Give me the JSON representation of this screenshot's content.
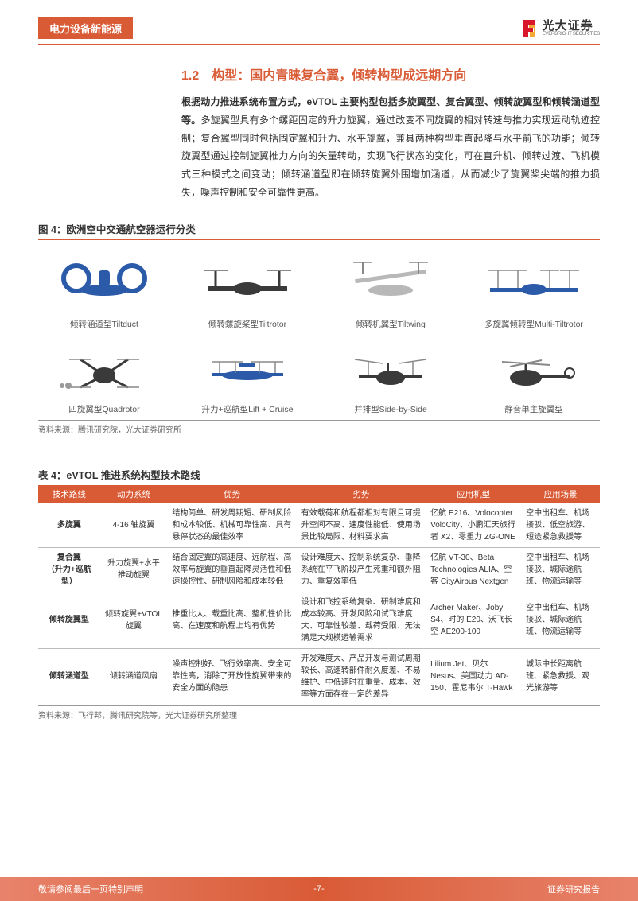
{
  "header": {
    "category": "电力设备新能源",
    "brand_cn": "光大证券",
    "brand_en": "EVERBRIGHT SECURITIES",
    "accent_color": "#d95b36"
  },
  "section": {
    "number": "1.2",
    "title": "构型：国内青睐复合翼，倾转构型成远期方向",
    "para_bold": "根据动力推进系统布置方式，eVTOL 主要构型包括多旋翼型、复合翼型、倾转旋翼型和倾转涵道型等。",
    "para_rest": "多旋翼型具有多个螺距固定的升力旋翼，通过改变不同旋翼的相对转速与推力实现运动轨迹控制；复合翼型同时包括固定翼和升力、水平旋翼，兼具两种构型垂直起降与水平前飞的功能；倾转旋翼型通过控制旋翼推力方向的矢量转动，实现飞行状态的变化，可在直升机、倾转过渡、飞机模式三种模式之间变动；倾转涵道型即在倾转旋翼外围增加涵道，从而减少了旋翼桨尖端的推力损失，噪声控制和安全可靠性更高。"
  },
  "figure4": {
    "caption": "图 4：欧洲空中交通航空器运行分类",
    "source": "资料来源：腾讯研究院，光大证券研究所",
    "row1": [
      {
        "label": "倾转涵道型Tiltduct",
        "color": "#2b5aa8"
      },
      {
        "label": "倾转螺旋桨型Tiltrotor",
        "color": "#3a3a3a"
      },
      {
        "label": "倾转机翼型Tiltwing",
        "color": "#b8b8b8"
      },
      {
        "label": "多旋翼倾转型Multi-Tiltrotor",
        "color": "#2b5aa8"
      }
    ],
    "row2": [
      {
        "label": "四旋翼型Quadrotor",
        "color": "#3a3a3a"
      },
      {
        "label": "升力+巡航型Lift + Cruise",
        "color": "#2b5aa8"
      },
      {
        "label": "并排型Side-by-Side",
        "color": "#3a3a3a"
      },
      {
        "label": "静音单主旋翼型",
        "color": "#3a3a3a"
      }
    ]
  },
  "table4": {
    "caption": "表 4：eVTOL 推进系统构型技术路线",
    "source": "资料来源：飞行邦，腾讯研究院等，光大证券研究所整理",
    "columns": [
      "技术路线",
      "动力系统",
      "优势",
      "劣势",
      "应用机型",
      "应用场景"
    ],
    "col_widths": [
      "11%",
      "12%",
      "23%",
      "23%",
      "17%",
      "14%"
    ],
    "rows": [
      {
        "route": "多旋翼",
        "system": "4-16 轴旋翼",
        "pros": "结构简单、研发周期短、研制风险和成本较低、机械可靠性高、具有悬停状态的最佳效率",
        "cons": "有效载荷和航程都相对有限且可提升空间不高、速度性能低、使用场景比较局限、材料要求高",
        "models": "亿航 E216、Volocopter VoloCity、小鹏汇天旅行者 X2、零重力 ZG-ONE",
        "scene": "空中出租车、机场接驳、低空旅游、短途紧急救援等"
      },
      {
        "route": "复合翼\n（升力+巡航型）",
        "system": "升力旋翼+水平推动旋翼",
        "pros": "结合固定翼的高速度、远航程、高效率与旋翼的垂直起降灵活性和低速操控性、研制风险和成本较低",
        "cons": "设计难度大、控制系统复杂、垂降系统在平飞阶段产生死重和额外阻力、重复效率低",
        "models": "亿航 VT-30、Beta Technologies ALIA、空客 CityAirbus Nextgen",
        "scene": "空中出租车、机场接驳、城际途航班、物流运输等"
      },
      {
        "route": "倾转旋翼型",
        "system": "倾转旋翼+VTOL 旋翼",
        "pros": "推重比大、载重比高、整机性价比高、在速度和航程上均有优势",
        "cons": "设计和飞控系统复杂、研制难度和成本较高、开发风险和试飞难度大、可靠性较差、载荷受限、无法满足大规模运输需求",
        "models": "Archer Maker、Joby S4、时的 E20、沃飞长空 AE200-100",
        "scene": "空中出租车、机场接驳、城际途航班、物流运输等"
      },
      {
        "route": "倾转涵道型",
        "system": "倾转涵道风扇",
        "pros": "噪声控制好、飞行效率高、安全可靠性高，消除了开放性旋翼带来的安全方面的隐患",
        "cons": "开发难度大、产品开发与测试周期较长、高速转部件耐久度差、不易维护、中低速时在重量、成本、效率等方面存在一定的差异",
        "models": "Lilium Jet、贝尔 Nesus、美国动力 AD-150、霍尼韦尔 T-Hawk",
        "scene": "城际中长距离航班、紧急救援、观光旅游等"
      }
    ]
  },
  "footer": {
    "left": "敬请参阅最后一页特别声明",
    "center": "-7-",
    "right": "证券研究报告"
  }
}
